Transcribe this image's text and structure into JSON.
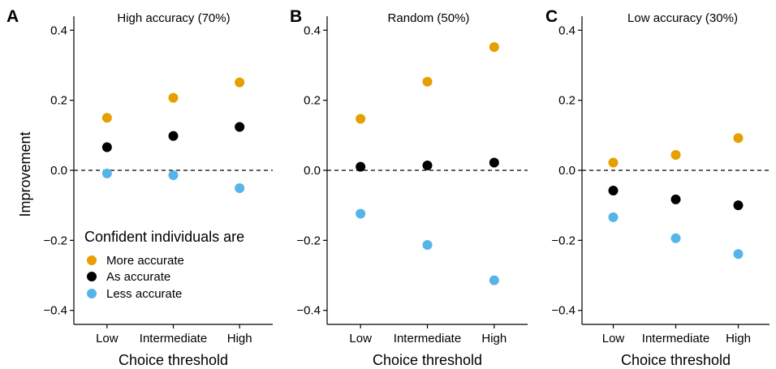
{
  "figure": {
    "ylabel": "Improvement",
    "xlabel": "Choice threshold"
  },
  "legend": {
    "title": "Confident individuals are",
    "placement": "bottom-left of panel A",
    "items": [
      {
        "label": "More accurate",
        "color": "#E69F00"
      },
      {
        "label": "As accurate",
        "color": "#000000"
      },
      {
        "label": "Less accurate",
        "color": "#56B4E9"
      }
    ]
  },
  "chart_data": [
    {
      "type": "scatter",
      "panel": "A",
      "title": "High accuracy (70%)",
      "xlabel": "Choice threshold",
      "ylabel": "Improvement",
      "categories": [
        "Low",
        "Intermediate",
        "High"
      ],
      "ylim": [
        -0.44,
        0.44
      ],
      "yticks": [
        "0.4",
        "0.2",
        "0.0",
        "−0.2",
        "−0.4"
      ],
      "reference_line": {
        "y": 0,
        "style": "dashed"
      },
      "grid": false,
      "series": [
        {
          "name": "More accurate",
          "color": "#E69F00",
          "values": [
            0.15,
            0.207,
            0.251
          ]
        },
        {
          "name": "As accurate",
          "color": "#000000",
          "values": [
            0.066,
            0.098,
            0.124
          ]
        },
        {
          "name": "Less accurate",
          "color": "#56B4E9",
          "values": [
            -0.009,
            -0.014,
            -0.051
          ]
        }
      ]
    },
    {
      "type": "scatter",
      "panel": "B",
      "title": "Random (50%)",
      "xlabel": "Choice threshold",
      "categories": [
        "Low",
        "Intermediate",
        "High"
      ],
      "ylim": [
        -0.44,
        0.44
      ],
      "yticks": [
        "0.4",
        "0.2",
        "0.0",
        "−0.2",
        "−0.4"
      ],
      "reference_line": {
        "y": 0,
        "style": "dashed"
      },
      "grid": false,
      "series": [
        {
          "name": "More accurate",
          "color": "#E69F00",
          "values": [
            0.147,
            0.253,
            0.352
          ]
        },
        {
          "name": "As accurate",
          "color": "#000000",
          "values": [
            0.01,
            0.014,
            0.022
          ]
        },
        {
          "name": "Less accurate",
          "color": "#56B4E9",
          "values": [
            -0.124,
            -0.213,
            -0.314
          ]
        }
      ]
    },
    {
      "type": "scatter",
      "panel": "C",
      "title": "Low accuracy (30%)",
      "xlabel": "Choice threshold",
      "categories": [
        "Low",
        "Intermediate",
        "High"
      ],
      "ylim": [
        -0.44,
        0.44
      ],
      "yticks": [
        "0.4",
        "0.2",
        "0.0",
        "−0.2",
        "−0.4"
      ],
      "reference_line": {
        "y": 0,
        "style": "dashed"
      },
      "grid": false,
      "series": [
        {
          "name": "More accurate",
          "color": "#E69F00",
          "values": [
            0.022,
            0.044,
            0.092
          ]
        },
        {
          "name": "As accurate",
          "color": "#000000",
          "values": [
            -0.058,
            -0.083,
            -0.1
          ]
        },
        {
          "name": "Less accurate",
          "color": "#56B4E9",
          "values": [
            -0.134,
            -0.194,
            -0.239
          ]
        }
      ]
    }
  ]
}
